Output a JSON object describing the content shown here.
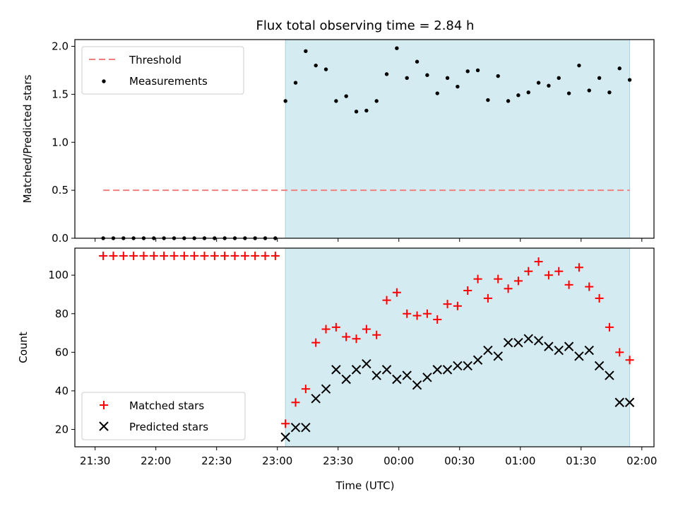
{
  "chart_data": {
    "title": "Flux total observing time = 2.84 h",
    "xlabel": "Time (UTC)",
    "x_ticks": [
      "21:30",
      "22:00",
      "22:30",
      "23:00",
      "23:30",
      "00:00",
      "00:30",
      "01:00",
      "01:30",
      "02:00"
    ],
    "shaded_region": {
      "start": "23:04",
      "end": "01:54",
      "color": "#d4ebf1"
    },
    "times": [
      "21:34",
      "21:39",
      "21:44",
      "21:49",
      "21:54",
      "21:59",
      "22:04",
      "22:09",
      "22:14",
      "22:19",
      "22:24",
      "22:29",
      "22:34",
      "22:39",
      "22:44",
      "22:49",
      "22:54",
      "22:59",
      "23:04",
      "23:09",
      "23:14",
      "23:19",
      "23:24",
      "23:29",
      "23:34",
      "23:39",
      "23:44",
      "23:49",
      "23:54",
      "23:59",
      "00:04",
      "00:09",
      "00:14",
      "00:19",
      "00:24",
      "00:29",
      "00:34",
      "00:39",
      "00:44",
      "00:49",
      "00:54",
      "00:59",
      "01:04",
      "01:09",
      "01:14",
      "01:19",
      "01:24",
      "01:29",
      "01:34",
      "01:39",
      "01:44",
      "01:49",
      "01:54"
    ],
    "charts": [
      {
        "type": "scatter",
        "ylabel": "Matched/Predicted stars",
        "ylim": [
          0,
          2.07
        ],
        "y_ticks": [
          "0.0",
          "0.5",
          "1.0",
          "1.5",
          "2.0"
        ],
        "legend": "upper-left",
        "series": [
          {
            "name": "Threshold",
            "type": "line",
            "style": "dashed",
            "color": "#f08080",
            "x": [
              "21:34",
              "01:54"
            ],
            "values": [
              0.5,
              0.5
            ]
          },
          {
            "name": "Measurements",
            "type": "scatter",
            "marker": "dot",
            "color": "#000000",
            "values": [
              0,
              0,
              0,
              0,
              0,
              0,
              0,
              0,
              0,
              0,
              0,
              0,
              0,
              0,
              0,
              0,
              0,
              0,
              1.43,
              1.62,
              1.95,
              1.8,
              1.76,
              1.43,
              1.48,
              1.32,
              1.33,
              1.43,
              1.71,
              1.98,
              1.67,
              1.84,
              1.7,
              1.51,
              1.67,
              1.58,
              1.74,
              1.75,
              1.44,
              1.69,
              1.43,
              1.49,
              1.52,
              1.62,
              1.59,
              1.67,
              1.51,
              1.8,
              1.54,
              1.67,
              1.52,
              1.77,
              1.65
            ]
          }
        ]
      },
      {
        "type": "scatter",
        "ylabel": "Count",
        "ylim": [
          11,
          114
        ],
        "y_ticks": [
          "20",
          "40",
          "60",
          "80",
          "100"
        ],
        "legend": "lower-left",
        "series": [
          {
            "name": "Matched stars",
            "marker": "plus",
            "color": "#ff0000",
            "values": [
              110,
              110,
              110,
              110,
              110,
              110,
              110,
              110,
              110,
              110,
              110,
              110,
              110,
              110,
              110,
              110,
              110,
              110,
              23,
              34,
              41,
              65,
              72,
              73,
              68,
              67,
              72,
              69,
              87,
              91,
              80,
              79,
              80,
              77,
              85,
              84,
              92,
              98,
              88,
              98,
              93,
              97,
              102,
              107,
              100,
              102,
              95,
              104,
              94,
              88,
              73,
              60,
              56
            ]
          },
          {
            "name": "Predicted stars",
            "marker": "x",
            "color": "#000000",
            "values": [
              null,
              null,
              null,
              null,
              null,
              null,
              null,
              null,
              null,
              null,
              null,
              null,
              null,
              null,
              null,
              null,
              null,
              null,
              16,
              21,
              21,
              36,
              41,
              51,
              46,
              51,
              54,
              48,
              51,
              46,
              48,
              43,
              47,
              51,
              51,
              53,
              53,
              56,
              61,
              58,
              65,
              65,
              67,
              66,
              63,
              61,
              63,
              58,
              61,
              53,
              48,
              34,
              34
            ]
          }
        ]
      }
    ]
  }
}
